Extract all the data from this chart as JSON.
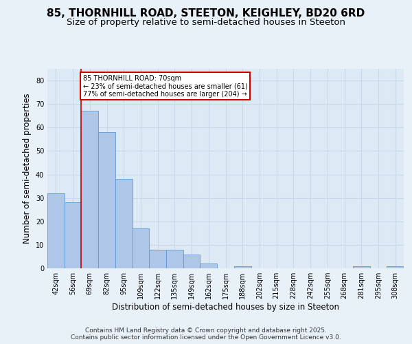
{
  "title_line1": "85, THORNHILL ROAD, STEETON, KEIGHLEY, BD20 6RD",
  "title_line2": "Size of property relative to semi-detached houses in Steeton",
  "xlabel": "Distribution of semi-detached houses by size in Steeton",
  "ylabel": "Number of semi-detached properties",
  "categories": [
    "42sqm",
    "56sqm",
    "69sqm",
    "82sqm",
    "95sqm",
    "109sqm",
    "122sqm",
    "135sqm",
    "149sqm",
    "162sqm",
    "175sqm",
    "188sqm",
    "202sqm",
    "215sqm",
    "228sqm",
    "242sqm",
    "255sqm",
    "268sqm",
    "281sqm",
    "295sqm",
    "308sqm"
  ],
  "values": [
    32,
    28,
    67,
    58,
    38,
    17,
    8,
    8,
    6,
    2,
    0,
    1,
    0,
    0,
    0,
    0,
    0,
    0,
    1,
    0,
    1
  ],
  "bar_color": "#aec6e8",
  "bar_edge_color": "#5b9bd5",
  "subject_line_color": "#cc0000",
  "annotation_text": "85 THORNHILL ROAD: 70sqm\n← 23% of semi-detached houses are smaller (61)\n77% of semi-detached houses are larger (204) →",
  "annotation_box_facecolor": "#ffffff",
  "annotation_box_edgecolor": "#cc0000",
  "ylim": [
    0,
    85
  ],
  "yticks": [
    0,
    10,
    20,
    30,
    40,
    50,
    60,
    70,
    80
  ],
  "grid_color": "#c8d8ea",
  "plot_bg_color": "#ddeaf5",
  "fig_bg_color": "#e8f0f8",
  "footer_text": "Contains HM Land Registry data © Crown copyright and database right 2025.\nContains public sector information licensed under the Open Government Licence v3.0.",
  "title_fontsize": 11,
  "subtitle_fontsize": 9.5,
  "tick_fontsize": 7,
  "label_fontsize": 8.5,
  "footer_fontsize": 6.5
}
